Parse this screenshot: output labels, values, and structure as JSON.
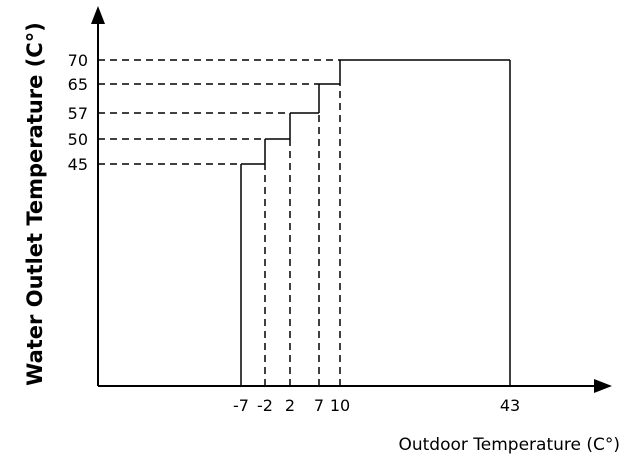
{
  "chart_data": {
    "type": "line",
    "title": "",
    "xlabel": "Outdoor Temperature (C°)",
    "ylabel": "Water Outlet Temperature (C°)",
    "x_ticks": [
      -7,
      -2,
      2,
      7,
      10,
      43
    ],
    "y_ticks": [
      45,
      50,
      57,
      65,
      70
    ],
    "series": [
      {
        "steps": [
          {
            "x_start": -7,
            "x_end": -2,
            "y": 45
          },
          {
            "x_start": -2,
            "x_end": 2,
            "y": 50
          },
          {
            "x_start": 2,
            "x_end": 7,
            "y": 57
          },
          {
            "x_start": 7,
            "x_end": 10,
            "y": 65
          },
          {
            "x_start": 10,
            "x_end": 43,
            "y": 70
          }
        ]
      }
    ],
    "grid": false,
    "colors": {
      "line": "#000000",
      "background": "#ffffff"
    }
  }
}
